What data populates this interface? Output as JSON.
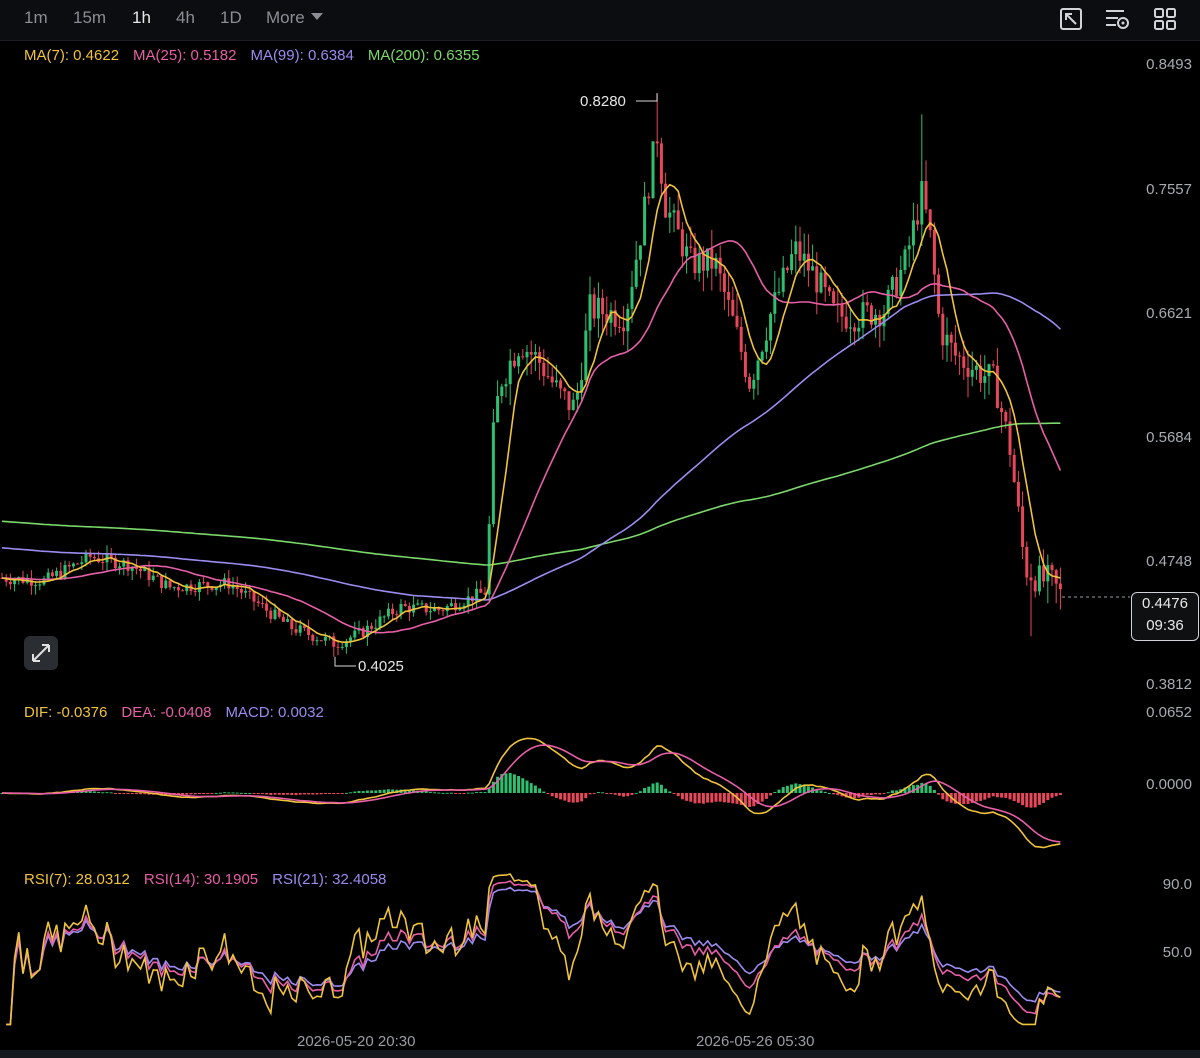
{
  "toolbar": {
    "timeframes": [
      {
        "label": "1m",
        "active": false
      },
      {
        "label": "15m",
        "active": false
      },
      {
        "label": "1h",
        "active": true
      },
      {
        "label": "4h",
        "active": false
      },
      {
        "label": "1D",
        "active": false
      }
    ],
    "more_label": "More",
    "tools": [
      "chart-settings-icon",
      "indicator-settings-icon",
      "layout-grid-icon"
    ]
  },
  "colors": {
    "ma7": "#f0c33c",
    "ma25": "#e65fa7",
    "ma99": "#9b8cf0",
    "ma200": "#7bd86a",
    "up": "#2fbf71",
    "down": "#e8475a",
    "dif": "#f0c33c",
    "dea": "#e65fa7",
    "macd": "#9b8cf0",
    "rsi7": "#f0c33c",
    "rsi14": "#e65fa7",
    "rsi21": "#9b8cf0"
  },
  "price_legend": {
    "ma7": "MA(7): 0.4622",
    "ma25": "MA(25): 0.5182",
    "ma99": "MA(99): 0.6384",
    "ma200": "MA(200): 0.6355"
  },
  "macd_legend": {
    "dif": "DIF: -0.0376",
    "dea": "DEA: -0.0408",
    "macd": "MACD: 0.0032"
  },
  "rsi_legend": {
    "rsi7": "RSI(7): 28.0312",
    "rsi14": "RSI(14): 30.1905",
    "rsi21": "RSI(21): 32.4058"
  },
  "price_axis": [
    "0.8493",
    "0.7557",
    "0.6621",
    "0.5684",
    "0.4748",
    "0.3812"
  ],
  "macd_axis": [
    "0.0652",
    "0.0000"
  ],
  "rsi_axis": [
    "90.0",
    "50.0"
  ],
  "dates": [
    "2026-05-20 20:30",
    "2026-05-26 05:30"
  ],
  "last_price": {
    "value": "0.4476",
    "countdown": "09:36"
  },
  "extremes": {
    "high": "0.8280",
    "low": "0.4025"
  },
  "chart_data": {
    "type": "candlestick",
    "interval": "1h",
    "ylim": [
      0.3812,
      0.8493
    ],
    "key_prices": {
      "start": 0.462,
      "pre_pump_low": 0.4025,
      "pump_breakout": 0.452,
      "first_peak": 0.828,
      "second_peak": 0.812,
      "last": 0.4476
    },
    "series": [
      {
        "name": "MA(7)",
        "last": 0.4622
      },
      {
        "name": "MA(25)",
        "last": 0.5182
      },
      {
        "name": "MA(99)",
        "last": 0.6384
      },
      {
        "name": "MA(200)",
        "last": 0.6355
      }
    ],
    "macd": {
      "DIF": -0.0376,
      "DEA": -0.0408,
      "MACD": 0.0032,
      "ylim_top": 0.0652
    },
    "rsi": {
      "RSI(7)": 28.0312,
      "RSI(14)": 30.1905,
      "RSI(21)": 32.4058,
      "gridlines": [
        90.0,
        50.0
      ]
    }
  }
}
